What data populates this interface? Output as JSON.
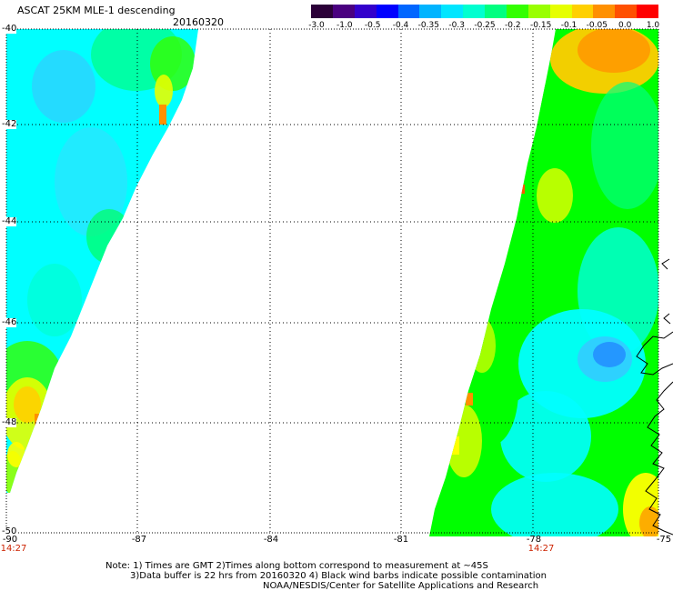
{
  "header": {
    "title": "ASCAT 25KM MLE-1 descending",
    "date": "20160320"
  },
  "colorbar": {
    "colors": [
      "#2b0038",
      "#4a0080",
      "#3300cc",
      "#0000ff",
      "#0066ff",
      "#00b4ff",
      "#00e6ff",
      "#00ffd0",
      "#00ff80",
      "#33ff00",
      "#99ff00",
      "#e6ff00",
      "#ffd000",
      "#ff9000",
      "#ff5000",
      "#ff0000"
    ],
    "labels": [
      "-3.0",
      "-1.0",
      "-0.5",
      "-0.4",
      "-0.35",
      "-0.3",
      "-0.25",
      "-0.2",
      "-0.15",
      "-0.1",
      "-0.05",
      "0.0",
      "1.0"
    ]
  },
  "axes": {
    "lat_labels": [
      "-40",
      "-42",
      "-44",
      "-46",
      "-48",
      "-50"
    ],
    "lon_labels": [
      "-90",
      "-87",
      "-84",
      "-81",
      "-78",
      "-75"
    ],
    "lat_range": [
      -50,
      -40
    ],
    "lon_range": [
      -90,
      -75
    ],
    "grid": "dotted"
  },
  "swath_times": [
    "14:27",
    "14:27"
  ],
  "notes": [
    "Note: 1) Times are GMT 2)Times along bottom correspond to measurement at ~45S",
    "3)Data buffer is 22 hrs from 20160320 4) Black wind barbs indicate possible contamination",
    "NOAA/NESDIS/Center for Satellite Applications and Research"
  ],
  "palette": {
    "cyan": "#00ffff",
    "light_cyan": "#66ffee",
    "sky": "#33ccff",
    "aqua_green": "#00ff9a",
    "green": "#00ff00",
    "lime": "#99ff00",
    "yellow": "#ffff00",
    "yellow_orange": "#ffcc00",
    "orange": "#ff9900",
    "red_orange": "#ff5500",
    "blue": "#2288ff"
  }
}
